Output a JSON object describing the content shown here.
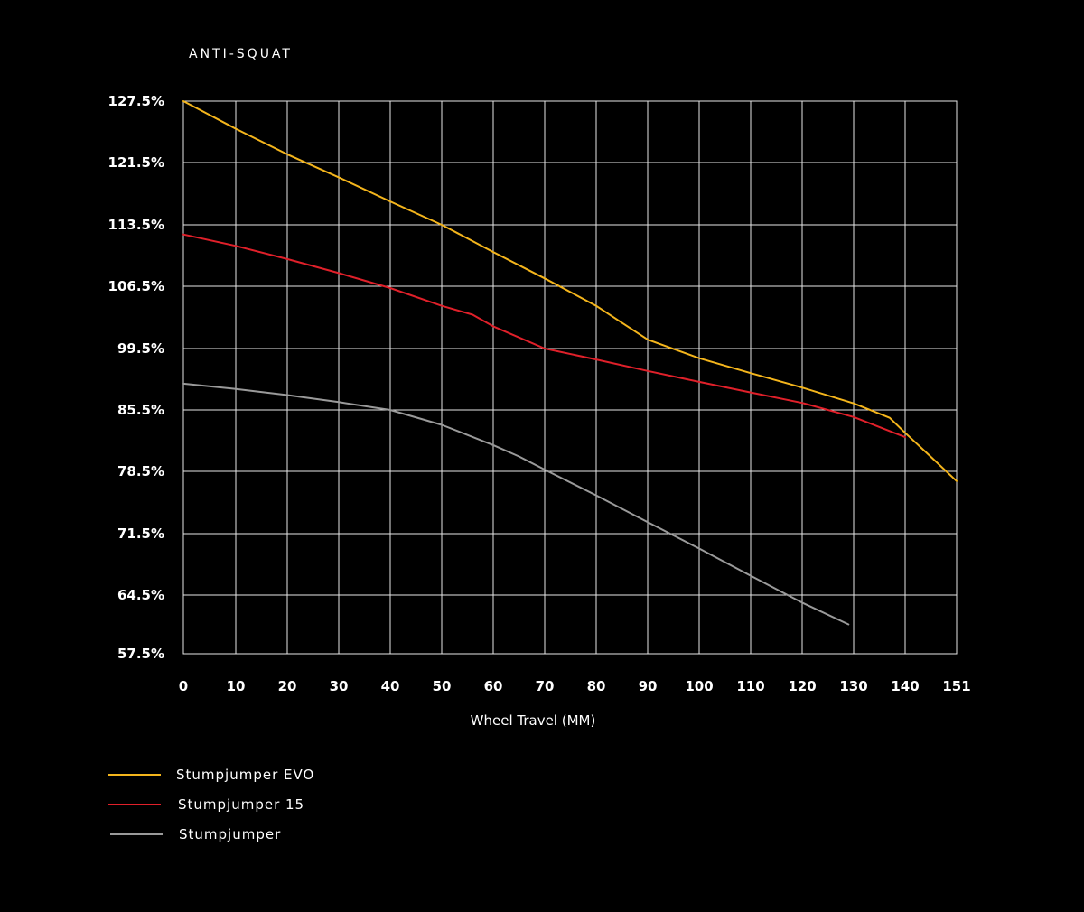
{
  "chart_data": {
    "type": "line",
    "title": "ANTI-SQUAT",
    "xlabel": "Wheel Travel (MM)",
    "ylabel": "",
    "x_ticks": [
      0,
      10,
      20,
      30,
      40,
      50,
      60,
      70,
      80,
      90,
      100,
      110,
      120,
      130,
      140,
      151
    ],
    "y_ticks": [
      "127.5%",
      "121.5%",
      "113.5%",
      "106.5%",
      "99.5%",
      "85.5%",
      "78.5%",
      "71.5%",
      "64.5%",
      "57.5%"
    ],
    "xlim": [
      0,
      151
    ],
    "grid": true,
    "legend_position": "bottom-left",
    "series": [
      {
        "name": "Stumpjumper EVO",
        "color": "#f4b51c",
        "x": [
          0,
          10,
          20,
          30,
          40,
          50,
          60,
          70,
          80,
          85,
          90,
          100,
          110,
          120,
          130,
          137,
          140,
          145,
          151
        ],
        "y": [
          "127.5%",
          "124.8%",
          "122.3%",
          "119.6%",
          "116.5%",
          "113.5%",
          "110.4%",
          "107.4%",
          "104.3%",
          "102.4%",
          "100.5%",
          "97.3%",
          "93.9%",
          "90.6%",
          "87.0%",
          "84.6%",
          "82.9%",
          "80.4%",
          "77.4%"
        ]
      },
      {
        "name": "Stumpjumper 15",
        "color": "#e0202a",
        "x": [
          0,
          10,
          20,
          30,
          40,
          50,
          56,
          60,
          70,
          80,
          90,
          100,
          110,
          120,
          130,
          140
        ],
        "y": [
          "112.4%",
          "111.1%",
          "109.6%",
          "108.0%",
          "106.3%",
          "104.3%",
          "103.3%",
          "102.0%",
          "99.5%",
          "97.0%",
          "94.4%",
          "91.9%",
          "89.5%",
          "87.1%",
          "84.7%",
          "82.4%"
        ]
      },
      {
        "name": "Stumpjumper",
        "color": "#9a9a9a",
        "x": [
          0,
          10,
          20,
          30,
          40,
          50,
          60,
          65,
          70,
          80,
          90,
          100,
          110,
          120,
          129
        ],
        "y": [
          "91.5%",
          "90.3%",
          "88.9%",
          "87.3%",
          "85.5%",
          "83.8%",
          "81.5%",
          "80.2%",
          "78.7%",
          "75.8%",
          "72.8%",
          "69.8%",
          "66.7%",
          "63.6%",
          "61.0%"
        ]
      }
    ]
  }
}
